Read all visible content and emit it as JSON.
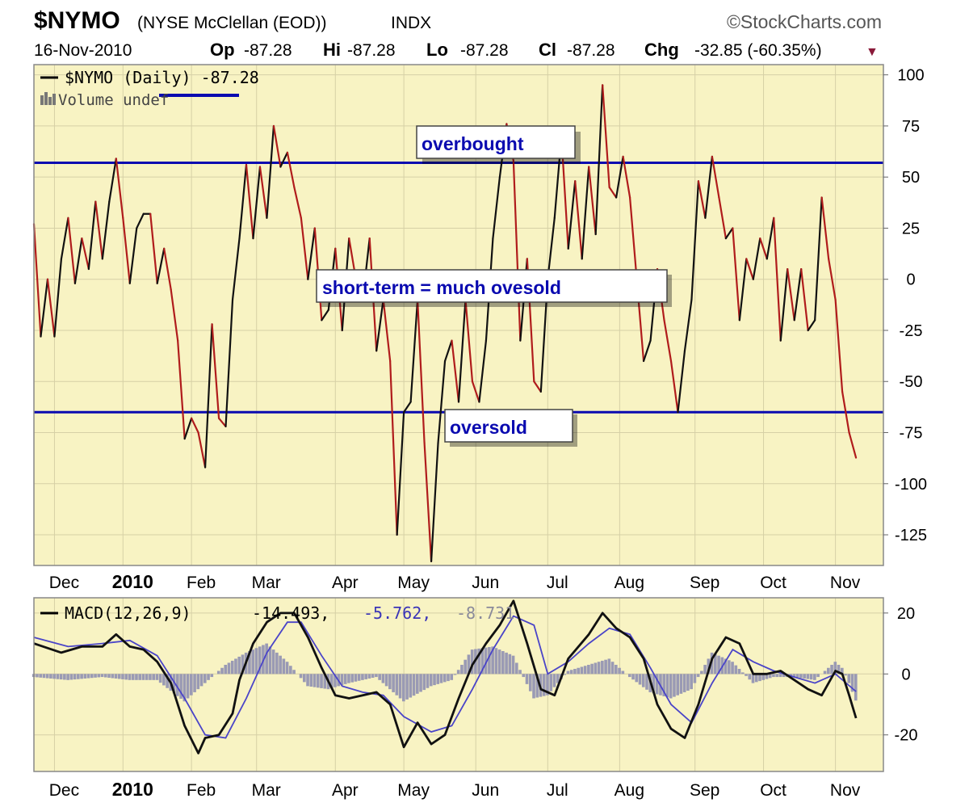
{
  "header": {
    "symbol": "$NYMO",
    "description": "(NYSE McClellan (EOD))",
    "exchange": "INDX",
    "brand": "©StockCharts.com",
    "date": "16-Nov-2010",
    "open_label": "Op",
    "open_value": "-87.28",
    "high_label": "Hi",
    "high_value": "-87.28",
    "low_label": "Lo",
    "low_value": "-87.28",
    "close_label": "Cl",
    "close_value": "-87.28",
    "change_label": "Chg",
    "change_value": "-32.85 (-60.35%)",
    "change_arrow": "▼"
  },
  "colors": {
    "plot_bg": "#f8f3c3",
    "grid": "#d6d0a6",
    "price_up": "#111111",
    "price_down": "#b01c1c",
    "level_line": "#0a0ab0",
    "macd_line": "#111111",
    "signal_line": "#4a44c8",
    "histogram": "#9a9ab4"
  },
  "upper_legend": {
    "series_label": "$NYMO (Daily) -87.28",
    "volume_label": "Volume undef"
  },
  "lower_legend": {
    "macd_label": "MACD(12,26,9)",
    "macd_value": "-14.493,",
    "signal_value": "-5.762,",
    "hist_value": "-8.731"
  },
  "annotations": {
    "overbought": "overbought",
    "short_term": "short-term = much ovesold",
    "oversold": "oversold"
  },
  "chart_data": [
    {
      "type": "line",
      "series_name": "$NYMO (Daily)",
      "x_unit": "trading days since 22-Nov-2009 (x-axis labelled by month)",
      "x_months": [
        {
          "label": "Dec",
          "x": 6
        },
        {
          "label": "2010",
          "x": 26,
          "bold": true
        },
        {
          "label": "Feb",
          "x": 46
        },
        {
          "label": "Mar",
          "x": 65
        },
        {
          "label": "Apr",
          "x": 88
        },
        {
          "label": "May",
          "x": 108
        },
        {
          "label": "Jun",
          "x": 129
        },
        {
          "label": "Jul",
          "x": 150
        },
        {
          "label": "Aug",
          "x": 171
        },
        {
          "label": "Sep",
          "x": 193
        },
        {
          "label": "Oct",
          "x": 213
        },
        {
          "label": "Nov",
          "x": 234
        }
      ],
      "xlim": [
        0,
        248
      ],
      "ylim": [
        -140,
        105
      ],
      "yticks": [
        100,
        75,
        50,
        25,
        0,
        -25,
        -50,
        -75,
        -100,
        -125
      ],
      "levels": [
        {
          "name": "overbought",
          "value": 57
        },
        {
          "name": "oversold",
          "value": -65
        }
      ],
      "points": [
        [
          0,
          27
        ],
        [
          2,
          -28
        ],
        [
          4,
          0
        ],
        [
          6,
          -28
        ],
        [
          8,
          10
        ],
        [
          10,
          30
        ],
        [
          12,
          -2
        ],
        [
          14,
          20
        ],
        [
          16,
          5
        ],
        [
          18,
          38
        ],
        [
          20,
          10
        ],
        [
          22,
          38
        ],
        [
          24,
          59
        ],
        [
          26,
          30
        ],
        [
          28,
          -2
        ],
        [
          30,
          25
        ],
        [
          32,
          32
        ],
        [
          34,
          32
        ],
        [
          36,
          -2
        ],
        [
          38,
          15
        ],
        [
          40,
          -5
        ],
        [
          42,
          -30
        ],
        [
          44,
          -78
        ],
        [
          46,
          -68
        ],
        [
          48,
          -75
        ],
        [
          50,
          -92
        ],
        [
          52,
          -22
        ],
        [
          54,
          -68
        ],
        [
          56,
          -72
        ],
        [
          58,
          -10
        ],
        [
          60,
          20
        ],
        [
          62,
          56
        ],
        [
          64,
          20
        ],
        [
          66,
          55
        ],
        [
          68,
          30
        ],
        [
          70,
          75
        ],
        [
          72,
          55
        ],
        [
          74,
          62
        ],
        [
          76,
          45
        ],
        [
          78,
          30
        ],
        [
          80,
          0
        ],
        [
          82,
          25
        ],
        [
          84,
          -20
        ],
        [
          86,
          -15
        ],
        [
          88,
          15
        ],
        [
          90,
          -25
        ],
        [
          92,
          20
        ],
        [
          94,
          0
        ],
        [
          96,
          -10
        ],
        [
          98,
          20
        ],
        [
          100,
          -35
        ],
        [
          102,
          -10
        ],
        [
          104,
          -40
        ],
        [
          106,
          -125
        ],
        [
          108,
          -65
        ],
        [
          110,
          -60
        ],
        [
          112,
          -10
        ],
        [
          114,
          -80
        ],
        [
          116,
          -138
        ],
        [
          118,
          -80
        ],
        [
          120,
          -40
        ],
        [
          122,
          -30
        ],
        [
          124,
          -60
        ],
        [
          126,
          -10
        ],
        [
          128,
          -50
        ],
        [
          130,
          -60
        ],
        [
          132,
          -30
        ],
        [
          134,
          20
        ],
        [
          136,
          50
        ],
        [
          138,
          76
        ],
        [
          140,
          58
        ],
        [
          142,
          -30
        ],
        [
          144,
          10
        ],
        [
          146,
          -50
        ],
        [
          148,
          -55
        ],
        [
          150,
          0
        ],
        [
          152,
          30
        ],
        [
          154,
          70
        ],
        [
          156,
          15
        ],
        [
          158,
          48
        ],
        [
          160,
          10
        ],
        [
          162,
          55
        ],
        [
          164,
          22
        ],
        [
          166,
          95
        ],
        [
          168,
          45
        ],
        [
          170,
          40
        ],
        [
          172,
          60
        ],
        [
          174,
          40
        ],
        [
          176,
          0
        ],
        [
          178,
          -40
        ],
        [
          180,
          -30
        ],
        [
          182,
          5
        ],
        [
          184,
          -20
        ],
        [
          186,
          -40
        ],
        [
          188,
          -65
        ],
        [
          190,
          -35
        ],
        [
          192,
          -10
        ],
        [
          194,
          48
        ],
        [
          196,
          30
        ],
        [
          198,
          60
        ],
        [
          200,
          40
        ],
        [
          202,
          20
        ],
        [
          204,
          25
        ],
        [
          206,
          -20
        ],
        [
          208,
          10
        ],
        [
          210,
          0
        ],
        [
          212,
          20
        ],
        [
          214,
          10
        ],
        [
          216,
          30
        ],
        [
          218,
          -30
        ],
        [
          220,
          5
        ],
        [
          222,
          -20
        ],
        [
          224,
          5
        ],
        [
          226,
          -25
        ],
        [
          228,
          -20
        ],
        [
          230,
          40
        ],
        [
          232,
          10
        ],
        [
          234,
          -10
        ],
        [
          236,
          -55
        ],
        [
          238,
          -75
        ],
        [
          240,
          -87.28
        ]
      ]
    },
    {
      "type": "line+bar",
      "series_names": [
        "MACD(12,26,9)",
        "Signal",
        "Histogram"
      ],
      "xlim": [
        0,
        248
      ],
      "ylim": [
        -32,
        25
      ],
      "yticks": [
        20,
        0,
        -20
      ],
      "macd": [
        [
          0,
          10
        ],
        [
          8,
          7
        ],
        [
          14,
          9
        ],
        [
          20,
          9
        ],
        [
          24,
          13
        ],
        [
          28,
          9
        ],
        [
          32,
          8
        ],
        [
          36,
          4
        ],
        [
          40,
          -3
        ],
        [
          44,
          -17
        ],
        [
          48,
          -26
        ],
        [
          50,
          -21
        ],
        [
          54,
          -20
        ],
        [
          58,
          -13
        ],
        [
          60,
          -2
        ],
        [
          64,
          10
        ],
        [
          68,
          17
        ],
        [
          72,
          20
        ],
        [
          76,
          20
        ],
        [
          80,
          12
        ],
        [
          84,
          2
        ],
        [
          88,
          -7
        ],
        [
          92,
          -8
        ],
        [
          96,
          -7
        ],
        [
          100,
          -6
        ],
        [
          104,
          -10
        ],
        [
          108,
          -24
        ],
        [
          112,
          -16
        ],
        [
          116,
          -23
        ],
        [
          120,
          -20
        ],
        [
          124,
          -8
        ],
        [
          128,
          3
        ],
        [
          132,
          10
        ],
        [
          136,
          16
        ],
        [
          140,
          24
        ],
        [
          144,
          10
        ],
        [
          148,
          -5
        ],
        [
          152,
          -7
        ],
        [
          156,
          5
        ],
        [
          162,
          13
        ],
        [
          166,
          20
        ],
        [
          170,
          15
        ],
        [
          174,
          12
        ],
        [
          178,
          5
        ],
        [
          182,
          -10
        ],
        [
          186,
          -18
        ],
        [
          190,
          -21
        ],
        [
          194,
          -10
        ],
        [
          198,
          5
        ],
        [
          202,
          12
        ],
        [
          206,
          10
        ],
        [
          210,
          0
        ],
        [
          214,
          0
        ],
        [
          218,
          1
        ],
        [
          222,
          -2
        ],
        [
          226,
          -5
        ],
        [
          230,
          -7
        ],
        [
          234,
          1
        ],
        [
          236,
          0
        ],
        [
          238,
          -7
        ],
        [
          240,
          -14.493
        ]
      ],
      "signal": [
        [
          0,
          12
        ],
        [
          10,
          9
        ],
        [
          20,
          10
        ],
        [
          28,
          11
        ],
        [
          36,
          6
        ],
        [
          44,
          -8
        ],
        [
          50,
          -20
        ],
        [
          56,
          -21
        ],
        [
          62,
          -8
        ],
        [
          68,
          7
        ],
        [
          74,
          17
        ],
        [
          78,
          17
        ],
        [
          84,
          6
        ],
        [
          90,
          -4
        ],
        [
          96,
          -6
        ],
        [
          102,
          -7
        ],
        [
          108,
          -14
        ],
        [
          116,
          -19
        ],
        [
          122,
          -17
        ],
        [
          128,
          -5
        ],
        [
          134,
          8
        ],
        [
          140,
          19
        ],
        [
          146,
          16
        ],
        [
          150,
          0
        ],
        [
          156,
          4
        ],
        [
          162,
          10
        ],
        [
          168,
          15
        ],
        [
          174,
          13
        ],
        [
          180,
          2
        ],
        [
          186,
          -10
        ],
        [
          192,
          -16
        ],
        [
          198,
          -3
        ],
        [
          204,
          8
        ],
        [
          210,
          4
        ],
        [
          216,
          1
        ],
        [
          222,
          -1
        ],
        [
          228,
          -3
        ],
        [
          234,
          0
        ],
        [
          240,
          -5.762
        ]
      ],
      "histogram": [
        [
          0,
          -1
        ],
        [
          10,
          -2
        ],
        [
          20,
          -1
        ],
        [
          28,
          -2
        ],
        [
          36,
          -2
        ],
        [
          44,
          -9
        ],
        [
          50,
          -3
        ],
        [
          56,
          3
        ],
        [
          62,
          7
        ],
        [
          68,
          10
        ],
        [
          74,
          4
        ],
        [
          80,
          -4
        ],
        [
          86,
          -5
        ],
        [
          92,
          -3
        ],
        [
          100,
          -1
        ],
        [
          108,
          -9
        ],
        [
          116,
          -4
        ],
        [
          122,
          -2
        ],
        [
          128,
          8
        ],
        [
          134,
          9
        ],
        [
          140,
          6
        ],
        [
          146,
          -8
        ],
        [
          150,
          -7
        ],
        [
          156,
          1
        ],
        [
          162,
          3
        ],
        [
          168,
          5
        ],
        [
          174,
          -1
        ],
        [
          180,
          -6
        ],
        [
          186,
          -8
        ],
        [
          192,
          -5
        ],
        [
          198,
          7
        ],
        [
          204,
          4
        ],
        [
          210,
          -3
        ],
        [
          216,
          -1
        ],
        [
          222,
          -1
        ],
        [
          228,
          -2
        ],
        [
          234,
          4
        ],
        [
          236,
          2
        ],
        [
          238,
          -3
        ],
        [
          240,
          -8.731
        ]
      ]
    }
  ]
}
